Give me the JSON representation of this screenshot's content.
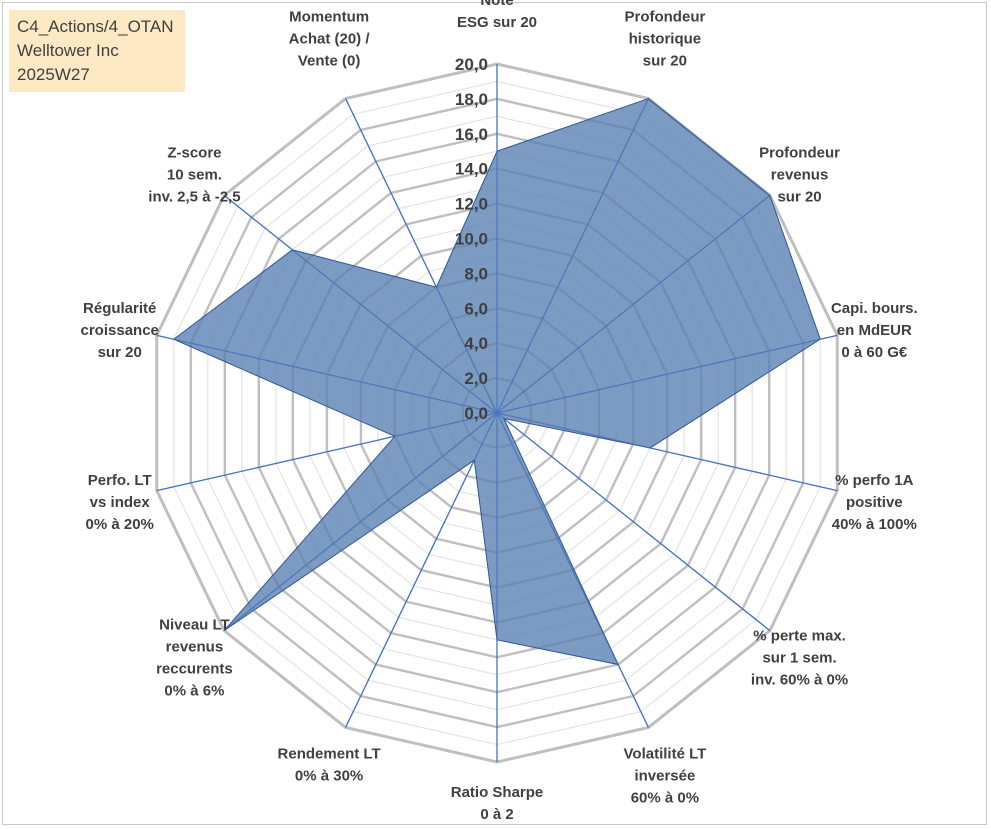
{
  "info": {
    "line1": "C4_Actions/4_OTAN",
    "line2": "Welltower Inc",
    "line3": "2025W27"
  },
  "chart_data": {
    "type": "radar",
    "max": 20,
    "ticks": [
      "0,0",
      "2,0",
      "4,0",
      "6,0",
      "8,0",
      "10,0",
      "12,0",
      "14,0",
      "16,0",
      "18,0",
      "20,0"
    ],
    "axes": [
      {
        "lines": [
          "Note",
          "ESG sur 20"
        ]
      },
      {
        "lines": [
          "Profondeur",
          "historique",
          "sur 20"
        ]
      },
      {
        "lines": [
          "Profondeur",
          "revenus",
          "sur 20"
        ]
      },
      {
        "lines": [
          "Capi. bours.",
          "en MdEUR",
          "0 à 60 G€"
        ]
      },
      {
        "lines": [
          "% perfo 1A",
          "positive",
          "40% à 100%"
        ]
      },
      {
        "lines": [
          "% perte max.",
          "sur 1 sem.",
          "inv. 60% à 0%"
        ]
      },
      {
        "lines": [
          "Volatilité LT",
          "inversée",
          "60% à 0%"
        ]
      },
      {
        "lines": [
          "Ratio Sharpe",
          "0 à 2"
        ]
      },
      {
        "lines": [
          "Rendement LT",
          "0% à 30%"
        ]
      },
      {
        "lines": [
          "Niveau LT",
          "revenus",
          "reccurents",
          "0% à 6%"
        ]
      },
      {
        "lines": [
          "Perfo. LT",
          "vs index",
          "0% à 20%"
        ]
      },
      {
        "lines": [
          "Régularité",
          "croissance",
          "sur 20"
        ]
      },
      {
        "lines": [
          "Z-score",
          "10 sem.",
          "inv. 2,5 à -2,5"
        ]
      },
      {
        "lines": [
          "Momentum",
          "Achat (20) /",
          "Vente (0)"
        ]
      }
    ],
    "values": [
      15.0,
      20.0,
      20.0,
      19.0,
      9.0,
      0.5,
      16.0,
      13.0,
      3.0,
      20.0,
      6.0,
      19.0,
      15.0,
      8.0
    ],
    "colors": {
      "fill": "#5b82b3",
      "fill_opacity": 0.8,
      "outline": "#2e5597",
      "grid_major": "#bfbfbf",
      "grid_minor": "#e3e3e3",
      "spoke": "#4472c4"
    }
  }
}
